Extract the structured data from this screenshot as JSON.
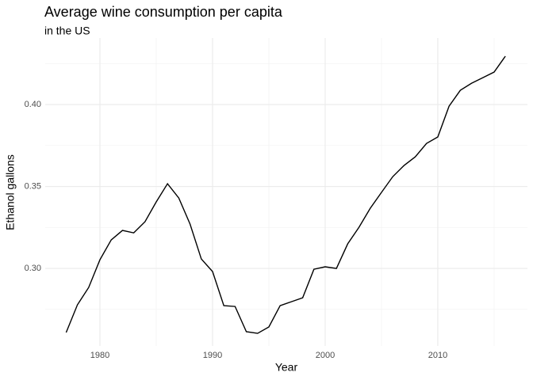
{
  "chart_data": {
    "type": "line",
    "title": "Average wine consumption per capita",
    "subtitle": "in the US",
    "x_label": "Year",
    "y_label": "Ethanol gallons",
    "x": [
      1977,
      1978,
      1979,
      1980,
      1981,
      1982,
      1983,
      1984,
      1985,
      1986,
      1987,
      1988,
      1989,
      1990,
      1991,
      1992,
      1993,
      1994,
      1995,
      1996,
      1997,
      1998,
      1999,
      2000,
      2001,
      2002,
      2003,
      2004,
      2005,
      2006,
      2007,
      2008,
      2009,
      2010,
      2011,
      2012,
      2013,
      2014,
      2015,
      2016
    ],
    "values": [
      0.2609,
      0.2778,
      0.2884,
      0.3053,
      0.3174,
      0.3232,
      0.3217,
      0.3285,
      0.3406,
      0.3517,
      0.343,
      0.3271,
      0.3058,
      0.2981,
      0.2773,
      0.2768,
      0.2614,
      0.2604,
      0.2643,
      0.2773,
      0.2797,
      0.2821,
      0.2995,
      0.301,
      0.3,
      0.315,
      0.3251,
      0.3367,
      0.3464,
      0.356,
      0.3628,
      0.3681,
      0.3763,
      0.3802,
      0.399,
      0.4087,
      0.413,
      0.4164,
      0.4198,
      0.4295
    ],
    "color": "#000000",
    "xlim": [
      1975.14,
      2017.96
    ],
    "ylim": [
      0.2527,
      0.4406
    ],
    "xticks": [
      1980,
      1990,
      2000,
      2010
    ],
    "yticks": [
      {
        "value": 0.3,
        "label": "0.30"
      },
      0.35,
      {
        "value": 0.4,
        "label": "0.40"
      }
    ],
    "grid": true
  }
}
